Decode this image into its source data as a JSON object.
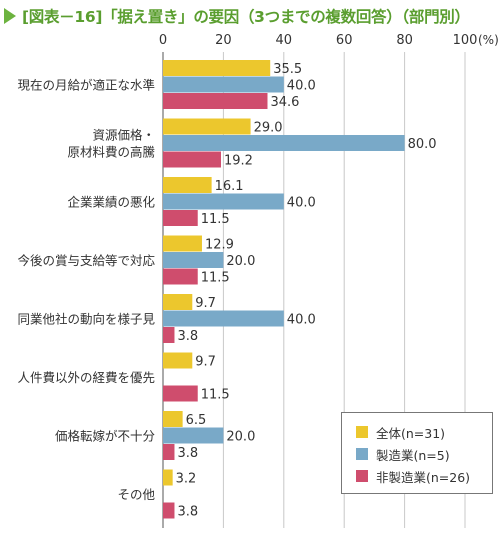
{
  "title": "[図表－16]「据え置き」の要因（3つまでの複数回答）（部門別）",
  "chart_data": {
    "type": "bar",
    "orientation": "horizontal",
    "title": "[図表－16]「据え置き」の要因（3つまでの複数回答）（部門別）",
    "xlim": [
      0,
      100
    ],
    "x_ticks": [
      "0",
      "20",
      "40",
      "60",
      "80",
      "100"
    ],
    "x_unit": "(%)",
    "grid": true,
    "legend_position": "bottom-right",
    "categories": [
      [
        "現在の月給が適正な水準"
      ],
      [
        "資源価格・",
        "原材料費の高騰"
      ],
      [
        "企業業績の悪化"
      ],
      [
        "今後の賞与支給等で対応"
      ],
      [
        "同業他社の動向を様子見"
      ],
      [
        "人件費以外の経費を優先"
      ],
      [
        "価格転嫁が不十分"
      ],
      [
        "その他"
      ]
    ],
    "series": [
      {
        "name": "全体(n=31)",
        "color": "#ecc72d",
        "values": [
          35.5,
          29.0,
          16.1,
          12.9,
          9.7,
          9.7,
          6.5,
          3.2
        ],
        "labels": [
          "35.5",
          "29.0",
          "16.1",
          "12.9",
          "9.7",
          "9.7",
          "6.5",
          "3.2"
        ]
      },
      {
        "name": "製造業(n=5)",
        "color": "#79a9c8",
        "values": [
          40.0,
          80.0,
          40.0,
          20.0,
          40.0,
          null,
          20.0,
          null
        ],
        "labels": [
          "40.0",
          "80.0",
          "40.0",
          "20.0",
          "40.0",
          null,
          "20.0",
          null
        ]
      },
      {
        "name": "非製造業(n=26)",
        "color": "#cf4d6d",
        "values": [
          34.6,
          19.2,
          11.5,
          11.5,
          3.8,
          11.5,
          3.8,
          3.8
        ],
        "labels": [
          "34.6",
          "19.2",
          "11.5",
          "11.5",
          "3.8",
          "11.5",
          "3.8",
          "3.8"
        ]
      }
    ]
  }
}
